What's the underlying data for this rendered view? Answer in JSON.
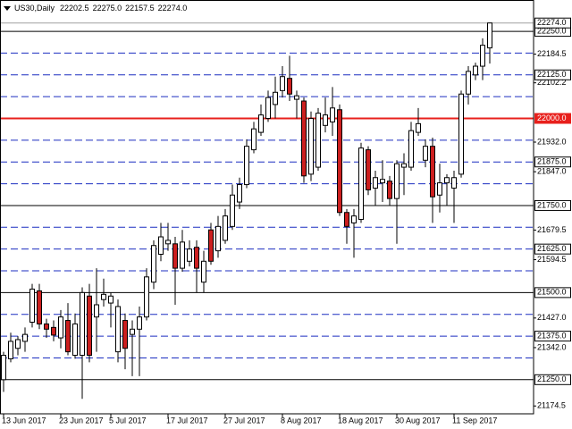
{
  "chart_data": {
    "type": "candlestick",
    "header": {
      "symbol": "US30,Daily",
      "values": [
        "22202.5",
        "22275.0",
        "22157.5",
        "22274.0"
      ]
    },
    "categories": [
      "13 Jun 2017",
      null,
      null,
      null,
      null,
      null,
      null,
      null,
      "23 Jun 2017",
      null,
      null,
      null,
      null,
      null,
      null,
      "5 Jul 2017",
      null,
      null,
      null,
      null,
      null,
      null,
      null,
      "17 Jul 2017",
      null,
      null,
      null,
      null,
      null,
      null,
      null,
      "27 Jul 2017",
      null,
      null,
      null,
      null,
      null,
      null,
      null,
      "8 Aug 2017",
      null,
      null,
      null,
      null,
      null,
      null,
      null,
      "18 Aug 2017",
      null,
      null,
      null,
      null,
      null,
      null,
      null,
      "30 Aug 2017",
      null,
      null,
      null,
      null,
      null,
      null,
      null,
      "11 Sep 2017",
      null,
      null,
      null,
      null,
      null
    ],
    "open": [
      21250,
      21310,
      21340,
      21360,
      21415,
      21505,
      21410,
      21400,
      21370,
      21420,
      21320,
      21320,
      21490,
      21430,
      21480,
      21470,
      21330,
      21420,
      21380,
      21395,
      21430,
      21530,
      21610,
      21640,
      21640,
      21570,
      21590,
      21630,
      21530,
      21680,
      21620,
      21650,
      21690,
      21760,
      21810,
      21910,
      21960,
      22000,
      22040,
      22080,
      22115,
      22055,
      22050,
      21840,
      21860,
      21980,
      21990,
      22025,
      21730,
      21700,
      21710,
      21910,
      21800,
      21815,
      21820,
      21770,
      21860,
      21860,
      21960,
      21880,
      21920,
      21780,
      21815,
      21800,
      21840,
      22070,
      22125,
      22150,
      22202.5
    ],
    "high": [
      21330,
      21385,
      21375,
      21400,
      21525,
      21525,
      21425,
      21420,
      21450,
      21470,
      21440,
      21515,
      21525,
      21570,
      21540,
      21500,
      21480,
      21440,
      21420,
      21460,
      21570,
      21650,
      21700,
      21700,
      21660,
      21680,
      21650,
      21650,
      21620,
      21700,
      21720,
      21740,
      21810,
      21830,
      21940,
      21990,
      22040,
      22080,
      22120,
      22150,
      22180,
      22080,
      22060,
      22020,
      22030,
      22060,
      22090,
      22040,
      21740,
      21740,
      21930,
      21920,
      21850,
      21880,
      21835,
      21880,
      21900,
      21990,
      22030,
      21940,
      21945,
      21870,
      21840,
      21850,
      22080,
      22150,
      22160,
      22230,
      22275
    ],
    "low": [
      21215,
      21300,
      21320,
      21330,
      21400,
      21395,
      21370,
      21360,
      21340,
      21320,
      21310,
      21195,
      21300,
      21330,
      21460,
      21400,
      21300,
      21280,
      21260,
      21260,
      21420,
      21510,
      21590,
      21620,
      21465,
      21560,
      21575,
      21500,
      21500,
      21580,
      21600,
      21640,
      21680,
      21740,
      21800,
      21900,
      21950,
      21990,
      22000,
      22060,
      22050,
      22000,
      21815,
      21820,
      21850,
      21960,
      21950,
      21720,
      21640,
      21600,
      21700,
      21780,
      21750,
      21760,
      21750,
      21640,
      21780,
      21850,
      21950,
      21860,
      21700,
      21730,
      21750,
      21700,
      21830,
      22040,
      22110,
      22110,
      22157.5
    ],
    "close": [
      21320,
      21360,
      21365,
      21380,
      21510,
      21410,
      21395,
      21378,
      21430,
      21330,
      21410,
      21500,
      21320,
      21465,
      21495,
      21490,
      21460,
      21340,
      21395,
      21430,
      21545,
      21635,
      21660,
      21650,
      21570,
      21645,
      21625,
      21570,
      21590,
      21590,
      21690,
      21720,
      21780,
      21810,
      21920,
      21970,
      22010,
      22060,
      22075,
      22120,
      22070,
      22065,
      21835,
      22000,
      22015,
      22010,
      22030,
      21730,
      21690,
      21720,
      21915,
      21795,
      21830,
      21825,
      21770,
      21870,
      21870,
      21965,
      21985,
      21920,
      21775,
      21815,
      21830,
      21830,
      22070,
      22135,
      22150,
      22210,
      22274
    ],
    "up_color": "#ffffff",
    "down_color": "#cc1f1f",
    "outline_color": "#000000",
    "ylim": [
      21152,
      22340
    ],
    "yticks": [
      22184.5,
      22102.2,
      {
        "value": 21932,
        "label": "21932.0"
      },
      {
        "value": 21847,
        "label": "21847.0"
      },
      21679.5,
      21594.5,
      {
        "value": 21427,
        "label": "21427.0"
      },
      {
        "value": 21342,
        "label": "21342.0"
      },
      21174.5
    ],
    "price": {
      "value": 22274,
      "label": "22274.0",
      "color": "#a0a0a0"
    },
    "levels": [
      {
        "value": 22250,
        "label": "22250.0",
        "style": "solid",
        "color": "#000000"
      },
      {
        "value": 22187.5,
        "style": "dashed",
        "color": "#1c2fc0"
      },
      {
        "value": 22125,
        "label": "22125.0",
        "style": "dashed",
        "color": "#1c2fc0"
      },
      {
        "value": 22062.5,
        "style": "dashed",
        "color": "#1c2fc0"
      },
      {
        "value": 22000,
        "label": "22000.0",
        "style": "thick",
        "color": "#e8201c"
      },
      {
        "value": 21937.5,
        "style": "dashed",
        "color": "#1c2fc0"
      },
      {
        "value": 21875,
        "label": "21875.0",
        "style": "dashed",
        "color": "#1c2fc0"
      },
      {
        "value": 21812.5,
        "style": "dashed",
        "color": "#1c2fc0"
      },
      {
        "value": 21750,
        "label": "21750.0",
        "style": "solid",
        "color": "#000000"
      },
      {
        "value": 21687.5,
        "style": "dashed",
        "color": "#1c2fc0"
      },
      {
        "value": 21625,
        "label": "21625.0",
        "style": "dashed",
        "color": "#1c2fc0"
      },
      {
        "value": 21562.5,
        "style": "dashed",
        "color": "#1c2fc0"
      },
      {
        "value": 21500,
        "label": "21500.0",
        "style": "solid",
        "color": "#000000"
      },
      {
        "value": 21437.5,
        "style": "dashed",
        "color": "#1c2fc0"
      },
      {
        "value": 21375,
        "label": "21375.0",
        "style": "dashed",
        "color": "#1c2fc0"
      },
      {
        "value": 21312.5,
        "style": "dashed",
        "color": "#1c2fc0"
      },
      {
        "value": 21250,
        "label": "21250.0",
        "style": "solid",
        "color": "#000000"
      }
    ]
  }
}
